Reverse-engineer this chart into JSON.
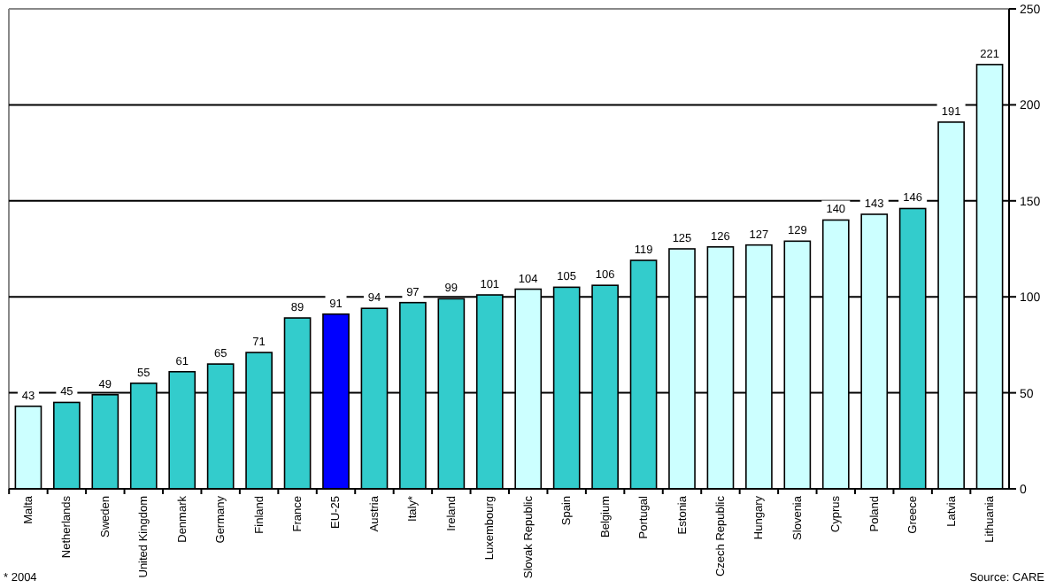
{
  "chart_data": {
    "type": "bar",
    "categories": [
      "Malta",
      "Netherlands",
      "Sweden",
      "United Kingdom",
      "Denmark",
      "Germany",
      "Finland",
      "France",
      "EU-25",
      "Austria",
      "Italy*",
      "Ireland",
      "Luxembourg",
      "Slovak Republic",
      "Spain",
      "Belgium",
      "Portugal",
      "Estonia",
      "Czech Republic",
      "Hungary",
      "Slovenia",
      "Cyprus",
      "Poland",
      "Greece",
      "Latvia",
      "Lithuania"
    ],
    "values": [
      43,
      45,
      49,
      55,
      61,
      65,
      71,
      89,
      91,
      94,
      97,
      99,
      101,
      104,
      105,
      106,
      119,
      125,
      126,
      127,
      129,
      140,
      143,
      146,
      191,
      221
    ],
    "colors": [
      "#ccffff",
      "#33cccc",
      "#33cccc",
      "#33cccc",
      "#33cccc",
      "#33cccc",
      "#33cccc",
      "#33cccc",
      "#0000ff",
      "#33cccc",
      "#33cccc",
      "#33cccc",
      "#33cccc",
      "#ccffff",
      "#33cccc",
      "#33cccc",
      "#33cccc",
      "#ccffff",
      "#ccffff",
      "#ccffff",
      "#ccffff",
      "#ccffff",
      "#ccffff",
      "#33cccc",
      "#ccffff",
      "#ccffff"
    ],
    "ylim": [
      0,
      250
    ],
    "yticks": [
      0,
      50,
      100,
      150,
      200,
      250
    ],
    "grid": "y",
    "data_labels": true,
    "annotations": [
      "* 2004",
      "Source: CARE"
    ]
  }
}
